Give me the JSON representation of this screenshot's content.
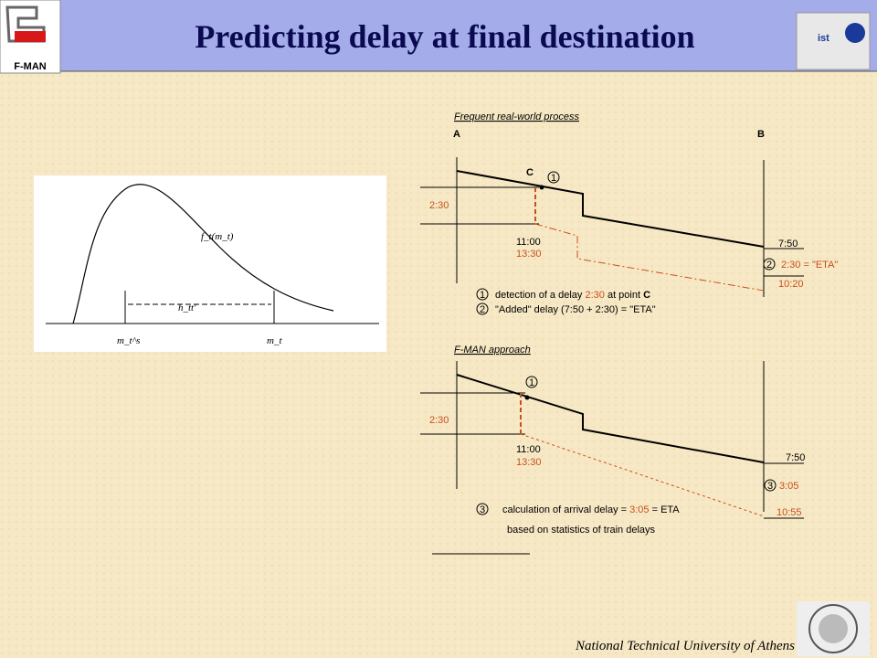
{
  "header": {
    "title": "Predicting delay at final destination",
    "left_logo": "F-MAN",
    "right_logo": "ist"
  },
  "distribution_figure": {
    "curve_label": "f_t(m_t)",
    "interval_label": "h_tt'",
    "left_marker": "m_t^s",
    "right_marker": "m_t"
  },
  "frequent_process": {
    "heading": "Frequent real-world process",
    "origin": "A",
    "destination": "B",
    "point": "C",
    "step1": "1",
    "delay": "2:30",
    "departure_plan": "11:00",
    "departure_actual": "13:30",
    "arrival_plan": "7:50",
    "step2": "2",
    "eta_text": "2:30 = \"ETA\"",
    "arrival_actual": "10:20",
    "legend": [
      {
        "number": "1",
        "parts": [
          "detection of a delay ",
          "2:30",
          " at point ",
          "C"
        ]
      },
      {
        "number": "2",
        "parts": [
          "\"Added\" delay (7:50 + 2:30) = \"ETA\""
        ]
      }
    ]
  },
  "fman_approach": {
    "heading": "F-MAN approach",
    "step1": "1",
    "delay": "2:30",
    "departure_plan": "11:00",
    "departure_actual": "13:30",
    "arrival_plan": "7:50",
    "step3": "3",
    "predicted_delay": "3:05",
    "arrival_actual": "10:55",
    "legend": [
      {
        "number": "3",
        "parts": [
          "calculation of arrival delay = ",
          "3:05",
          " = ETA"
        ]
      }
    ],
    "legend_note": "based on statistics of train delays"
  },
  "footer": {
    "institution": "National Technical University of Athens"
  }
}
